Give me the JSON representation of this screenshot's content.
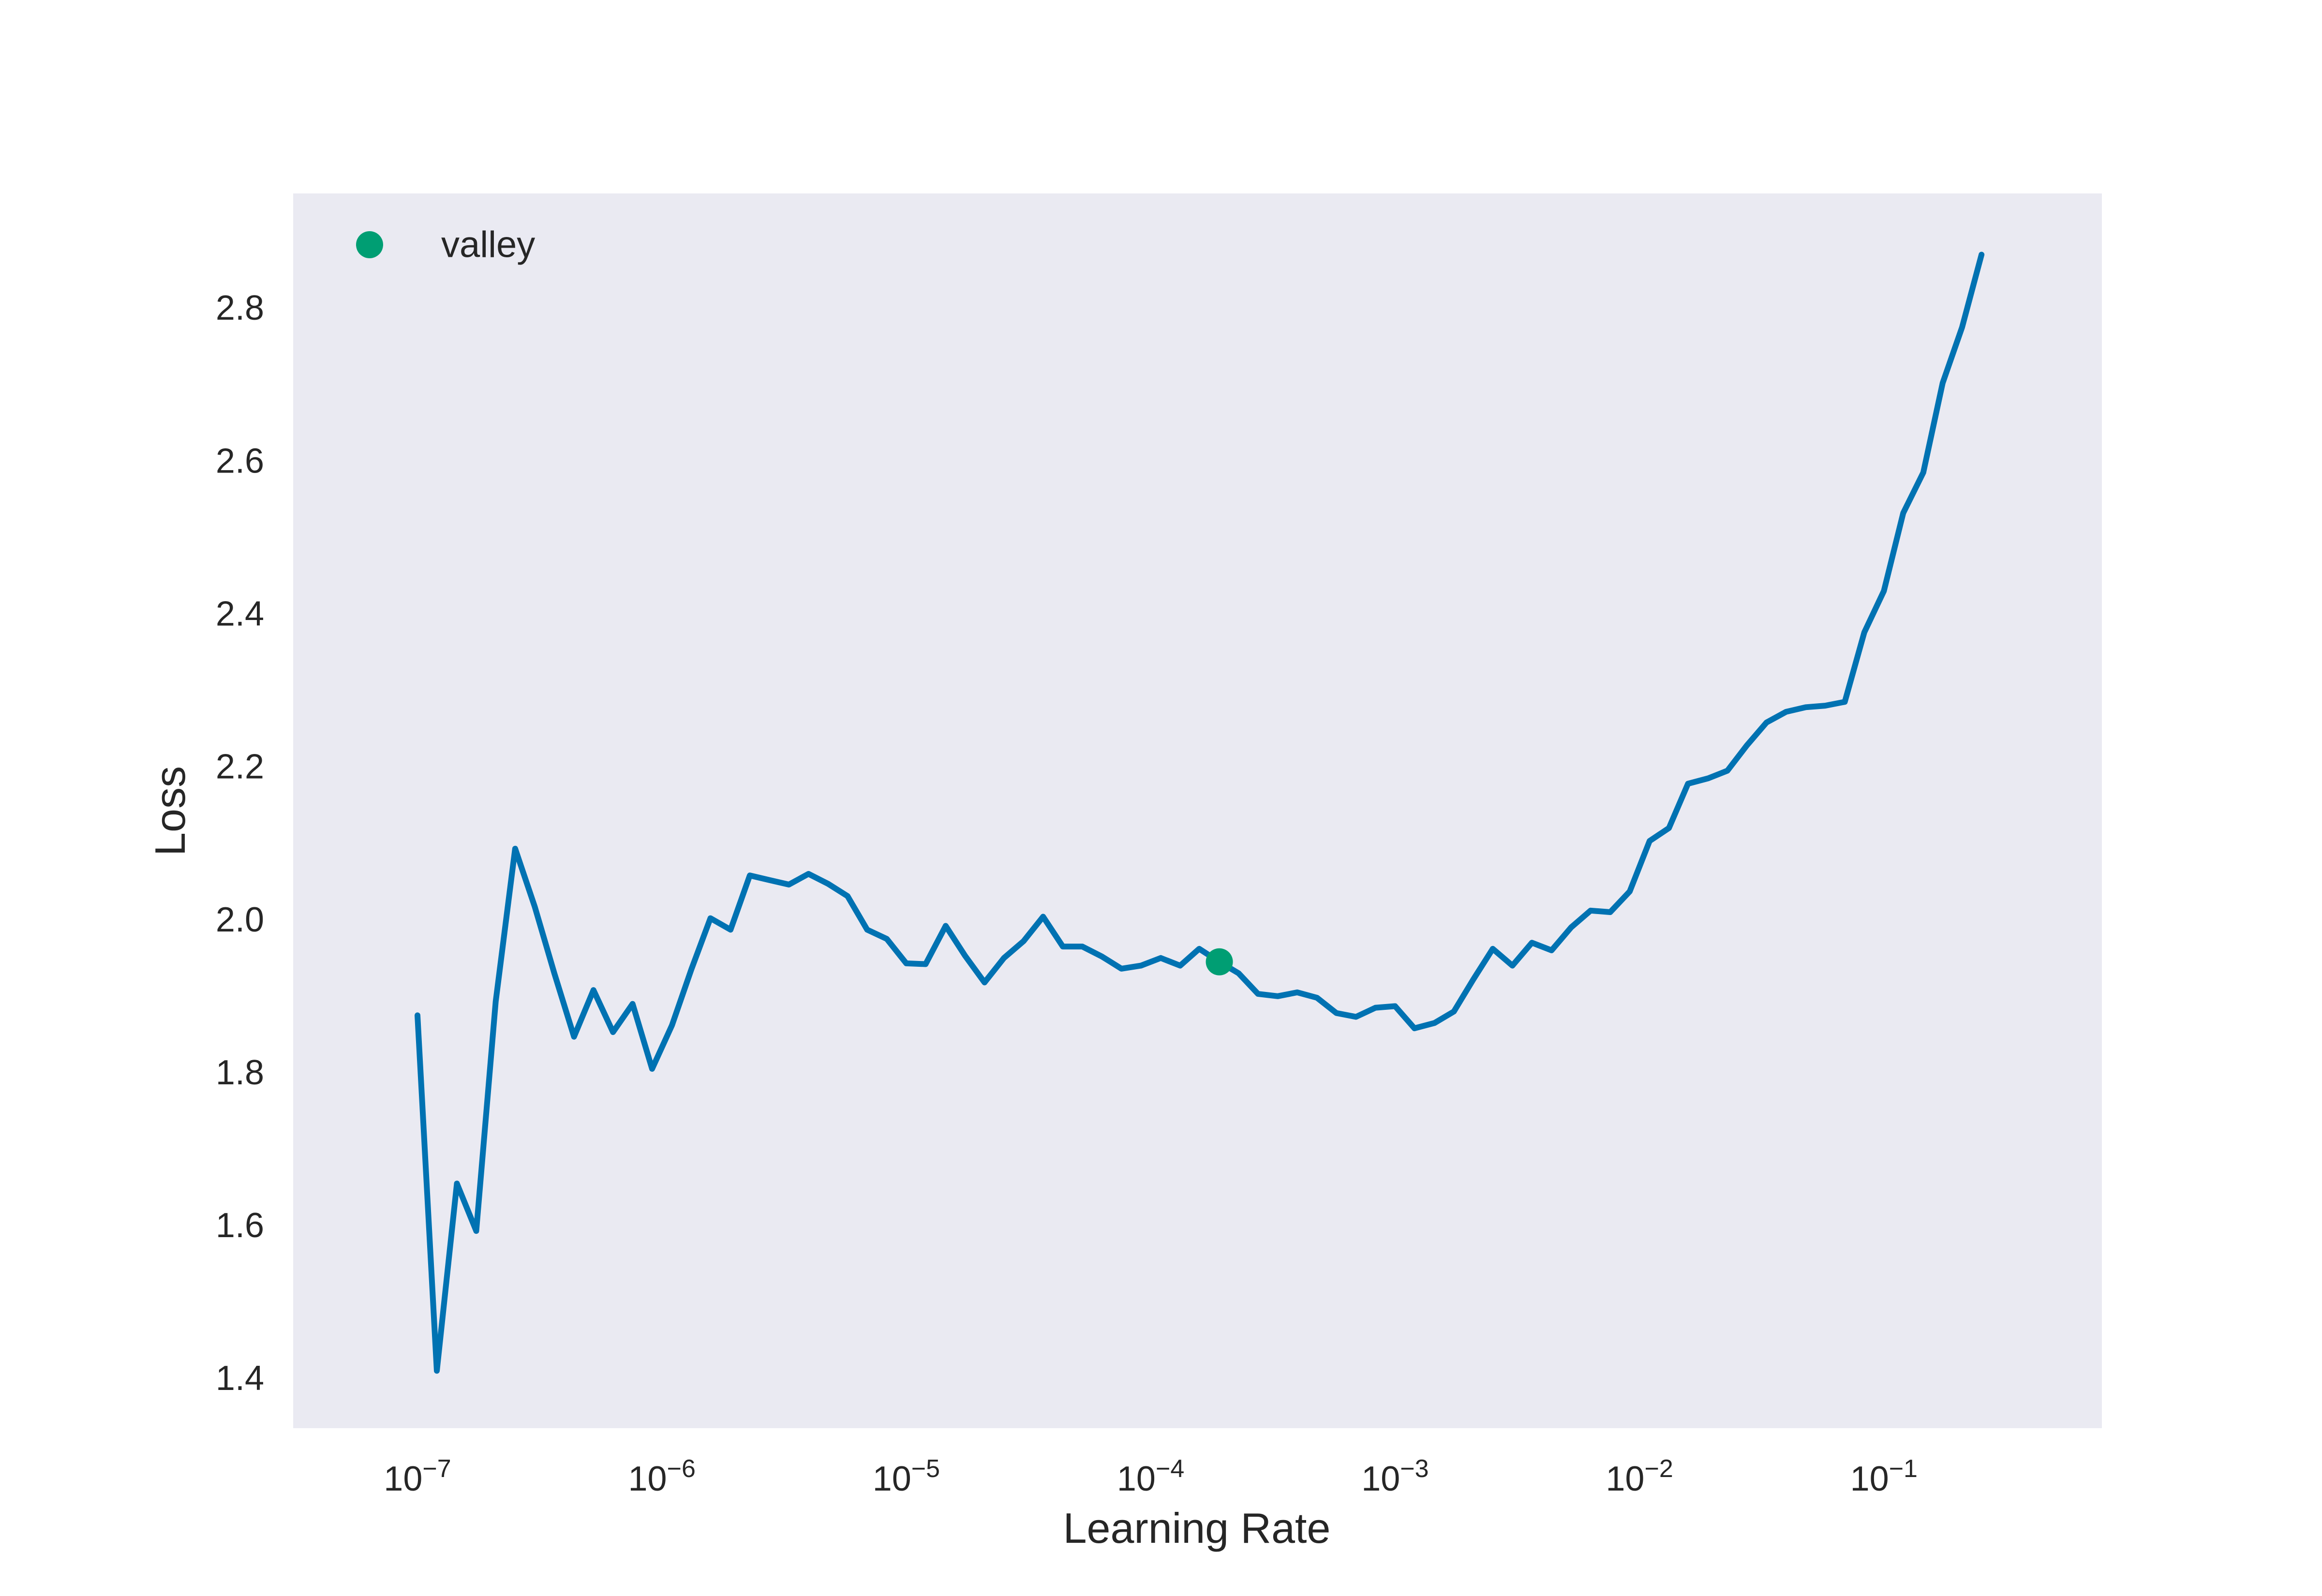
{
  "chart_data": {
    "type": "line",
    "title": "",
    "xlabel": "Learning Rate",
    "ylabel": "Loss",
    "xscale": "log",
    "xlim": [
      3.1e-08,
      0.78
    ],
    "ylim": [
      1.335,
      2.95
    ],
    "grid": false,
    "legend_position": "top-left",
    "background_color": "#eaeaf2",
    "x_ticks": [
      {
        "value": 1e-07,
        "base": "10",
        "exp": "−7"
      },
      {
        "value": 1e-06,
        "base": "10",
        "exp": "−6"
      },
      {
        "value": 1e-05,
        "base": "10",
        "exp": "−5"
      },
      {
        "value": 0.0001,
        "base": "10",
        "exp": "−4"
      },
      {
        "value": 0.001,
        "base": "10",
        "exp": "−3"
      },
      {
        "value": 0.01,
        "base": "10",
        "exp": "−2"
      },
      {
        "value": 0.1,
        "base": "10",
        "exp": "−1"
      }
    ],
    "y_ticks": [
      {
        "value": 1.4,
        "label": "1.4"
      },
      {
        "value": 1.6,
        "label": "1.6"
      },
      {
        "value": 1.8,
        "label": "1.8"
      },
      {
        "value": 2.0,
        "label": "2.0"
      },
      {
        "value": 2.2,
        "label": "2.2"
      },
      {
        "value": 2.4,
        "label": "2.4"
      },
      {
        "value": 2.6,
        "label": "2.6"
      },
      {
        "value": 2.8,
        "label": "2.8"
      }
    ],
    "series": [
      {
        "color": "#0072b2",
        "points": [
          [
            1e-07,
            1.875
          ],
          [
            1.2e-07,
            1.41
          ],
          [
            1.45e-07,
            1.655
          ],
          [
            1.74e-07,
            1.593
          ],
          [
            2.09e-07,
            1.893
          ],
          [
            2.51e-07,
            2.093
          ],
          [
            3.02e-07,
            2.017
          ],
          [
            3.63e-07,
            1.93
          ],
          [
            4.37e-07,
            1.847
          ],
          [
            5.25e-07,
            1.908
          ],
          [
            6.31e-07,
            1.853
          ],
          [
            7.59e-07,
            1.89
          ],
          [
            9.12e-07,
            1.805
          ],
          [
            1.1e-06,
            1.862
          ],
          [
            1.32e-06,
            1.935
          ],
          [
            1.58e-06,
            2.002
          ],
          [
            1.91e-06,
            1.987
          ],
          [
            2.29e-06,
            2.058
          ],
          [
            2.75e-06,
            2.052
          ],
          [
            3.31e-06,
            2.046
          ],
          [
            3.98e-06,
            2.06
          ],
          [
            4.79e-06,
            2.047
          ],
          [
            5.75e-06,
            2.031
          ],
          [
            6.92e-06,
            1.987
          ],
          [
            8.32e-06,
            1.975
          ],
          [
            1e-05,
            1.943
          ],
          [
            1.2e-05,
            1.942
          ],
          [
            1.45e-05,
            1.992
          ],
          [
            1.74e-05,
            1.953
          ],
          [
            2.09e-05,
            1.918
          ],
          [
            2.51e-05,
            1.95
          ],
          [
            3.02e-05,
            1.972
          ],
          [
            3.63e-05,
            2.004
          ],
          [
            4.37e-05,
            1.965
          ],
          [
            5.25e-05,
            1.965
          ],
          [
            6.31e-05,
            1.952
          ],
          [
            7.59e-05,
            1.936
          ],
          [
            9.12e-05,
            1.94
          ],
          [
            0.00011,
            1.95
          ],
          [
            0.000132,
            1.94
          ],
          [
            0.000158,
            1.962
          ],
          [
            0.000191,
            1.945
          ],
          [
            0.000229,
            1.93
          ],
          [
            0.000275,
            1.903
          ],
          [
            0.000331,
            1.9
          ],
          [
            0.000398,
            1.905
          ],
          [
            0.000479,
            1.898
          ],
          [
            0.000575,
            1.878
          ],
          [
            0.000692,
            1.873
          ],
          [
            0.000832,
            1.885
          ],
          [
            0.001,
            1.887
          ],
          [
            0.0012,
            1.858
          ],
          [
            0.00145,
            1.865
          ],
          [
            0.00174,
            1.88
          ],
          [
            0.00209,
            1.922
          ],
          [
            0.00251,
            1.962
          ],
          [
            0.00302,
            1.94
          ],
          [
            0.00363,
            1.97
          ],
          [
            0.00437,
            1.96
          ],
          [
            0.00525,
            1.99
          ],
          [
            0.00631,
            2.012
          ],
          [
            0.00759,
            2.01
          ],
          [
            0.00912,
            2.037
          ],
          [
            0.011,
            2.103
          ],
          [
            0.0132,
            2.12
          ],
          [
            0.0158,
            2.178
          ],
          [
            0.0191,
            2.185
          ],
          [
            0.0229,
            2.195
          ],
          [
            0.0275,
            2.228
          ],
          [
            0.0331,
            2.258
          ],
          [
            0.0398,
            2.272
          ],
          [
            0.0479,
            2.278
          ],
          [
            0.0575,
            2.28
          ],
          [
            0.0692,
            2.285
          ],
          [
            0.0832,
            2.376
          ],
          [
            0.1,
            2.43
          ],
          [
            0.12,
            2.532
          ],
          [
            0.145,
            2.585
          ],
          [
            0.174,
            2.702
          ],
          [
            0.209,
            2.775
          ],
          [
            0.251,
            2.87
          ]
        ]
      }
    ],
    "valley": {
      "label": "valley",
      "x": 0.000191,
      "y": 1.945,
      "color": "#009e73"
    }
  }
}
